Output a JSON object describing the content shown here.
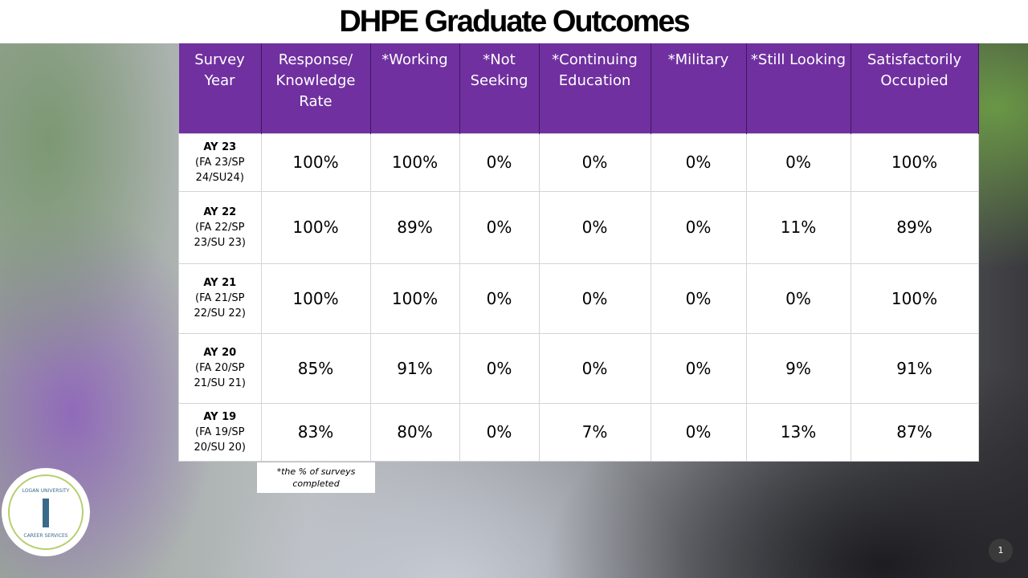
{
  "header": {
    "title": "DHPE Graduate Outcomes"
  },
  "table": {
    "columns": [
      "Survey Year",
      "Response/ Knowledge Rate",
      "*Working",
      "*Not Seeking",
      "*Continuing Education",
      "*Military",
      "*Still Looking",
      "Satisfactorily Occupied"
    ],
    "rows": [
      {
        "year": "AY 23",
        "terms": "(FA 23/SP 24/SU24)",
        "cells": [
          "100%",
          "100%",
          "0%",
          "0%",
          "0%",
          "0%",
          "100%"
        ]
      },
      {
        "year": "AY 22",
        "terms": "(FA 22/SP 23/SU 23)",
        "cells": [
          "100%",
          "89%",
          "0%",
          "0%",
          "0%",
          "11%",
          "89%"
        ]
      },
      {
        "year": "AY 21",
        "terms": "(FA 21/SP 22/SU 22)",
        "cells": [
          "100%",
          "100%",
          "0%",
          "0%",
          "0%",
          "0%",
          "100%"
        ]
      },
      {
        "year": "AY 20",
        "terms": "(FA 20/SP 21/SU 21)",
        "cells": [
          "85%",
          "91%",
          "0%",
          "0%",
          "0%",
          "9%",
          "91%"
        ]
      },
      {
        "year": "AY 19",
        "terms": "(FA 19/SP 20/SU 20)",
        "cells": [
          "83%",
          "80%",
          "0%",
          "7%",
          "0%",
          "13%",
          "87%"
        ]
      }
    ]
  },
  "footnote": "*the % of surveys completed",
  "logo": {
    "top": "LOGAN UNIVERSITY",
    "bottom": "CAREER SERVICES"
  },
  "page_number": "1"
}
